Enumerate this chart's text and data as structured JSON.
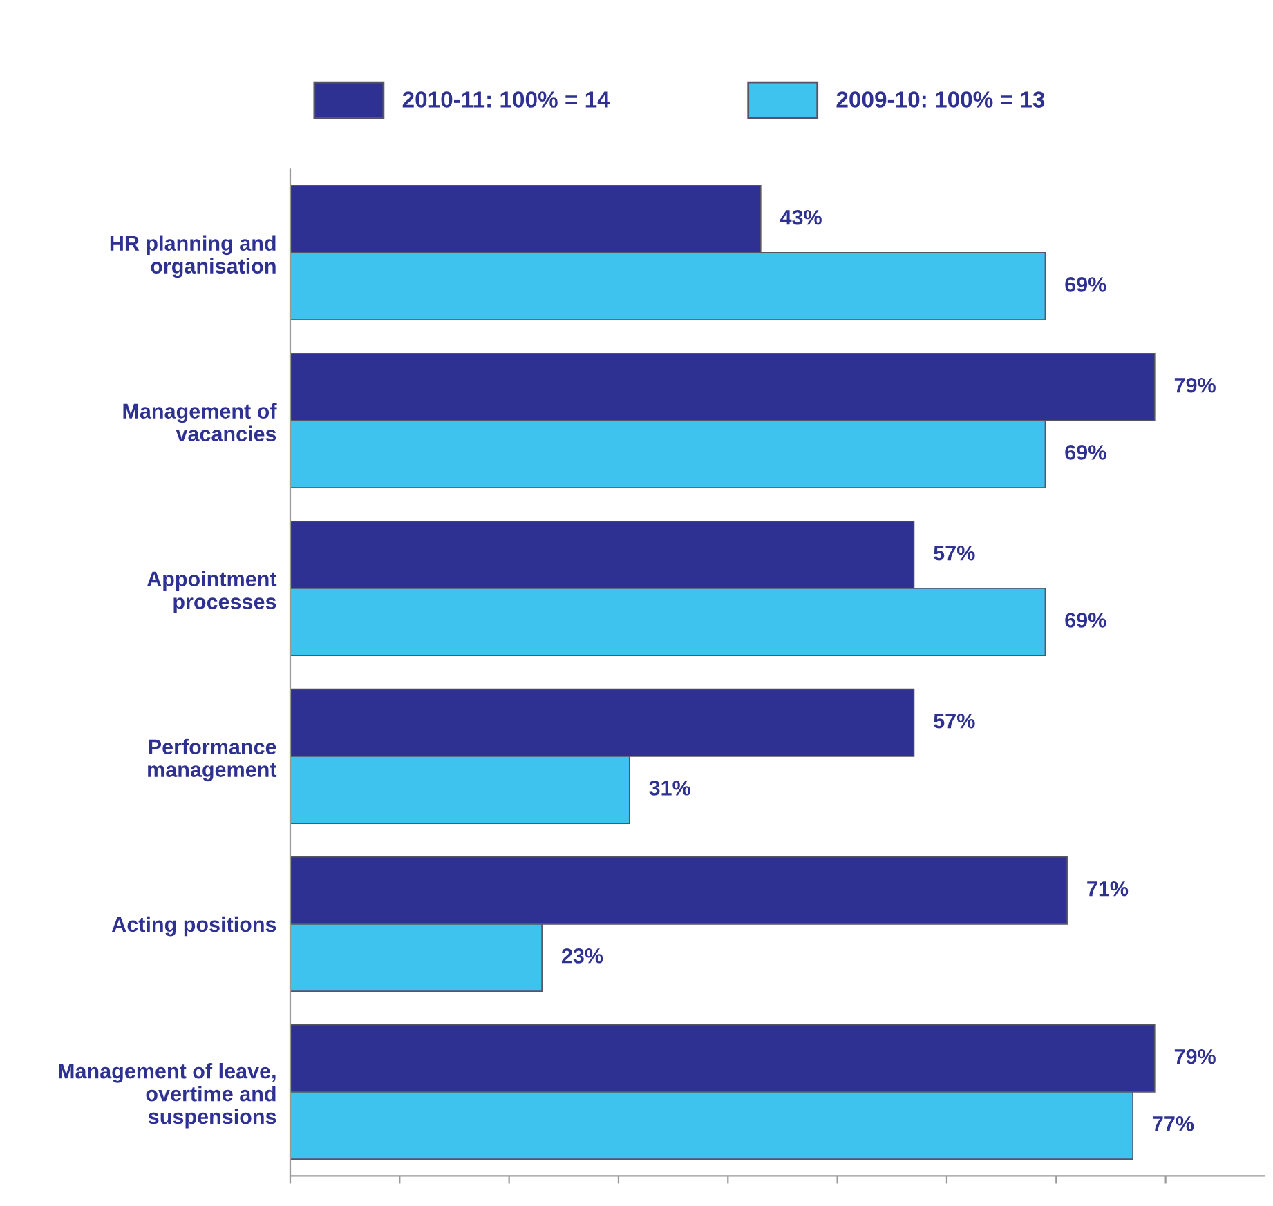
{
  "chart_data": {
    "type": "bar",
    "orientation": "horizontal",
    "categories": [
      "HR planning and\norganisation",
      "Management of\nvacancies",
      "Appointment\nprocesses",
      "Performance\nmanagement",
      "Acting positions",
      "Management of leave,\novertime and\nsuspensions"
    ],
    "series": [
      {
        "name": "2010-11: 100% = 14",
        "color": "#2e3192",
        "values": [
          43,
          79,
          57,
          57,
          71,
          79
        ],
        "value_labels": [
          "43%",
          "79%",
          "57%",
          "57%",
          "71%",
          "79%"
        ]
      },
      {
        "name": "2009-10: 100% = 13",
        "color": "#3ec3ee",
        "values": [
          69,
          69,
          69,
          31,
          23,
          77
        ],
        "value_labels": [
          "69%",
          "69%",
          "69%",
          "31%",
          "23%",
          "77%"
        ]
      }
    ],
    "xlim": [
      0,
      89
    ],
    "xticks": [
      {
        "value": 0,
        "label": null
      },
      {
        "value": 10,
        "label": null
      },
      {
        "value": 20,
        "label": null
      },
      {
        "value": 30,
        "label": null
      },
      {
        "value": 40,
        "label": null
      },
      {
        "value": 50,
        "label": null
      },
      {
        "value": 60,
        "label": null
      },
      {
        "value": 70,
        "label": null
      },
      {
        "value": 80,
        "label": null
      }
    ],
    "tick_labels": "y",
    "legend": "top",
    "grid": false
  }
}
